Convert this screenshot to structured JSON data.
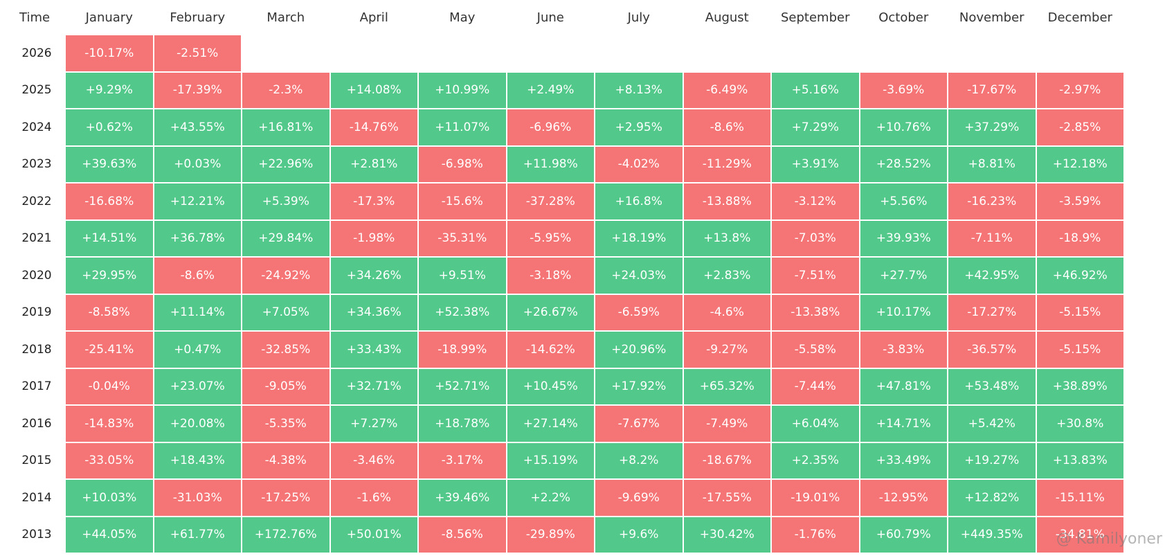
{
  "table": {
    "header": [
      "Time",
      "January",
      "February",
      "March",
      "April",
      "May",
      "June",
      "July",
      "August",
      "September",
      "October",
      "November",
      "December"
    ],
    "rows": [
      {
        "year": "2026",
        "cells": [
          "-10.17%",
          "-2.51%"
        ]
      },
      {
        "year": "2025",
        "cells": [
          "+9.29%",
          "-17.39%",
          "-2.3%",
          "+14.08%",
          "+10.99%",
          "+2.49%",
          "+8.13%",
          "-6.49%",
          "+5.16%",
          "-3.69%",
          "-17.67%",
          "-2.97%"
        ]
      },
      {
        "year": "2024",
        "cells": [
          "+0.62%",
          "+43.55%",
          "+16.81%",
          "-14.76%",
          "+11.07%",
          "-6.96%",
          "+2.95%",
          "-8.6%",
          "+7.29%",
          "+10.76%",
          "+37.29%",
          "-2.85%"
        ]
      },
      {
        "year": "2023",
        "cells": [
          "+39.63%",
          "+0.03%",
          "+22.96%",
          "+2.81%",
          "-6.98%",
          "+11.98%",
          "-4.02%",
          "-11.29%",
          "+3.91%",
          "+28.52%",
          "+8.81%",
          "+12.18%"
        ]
      },
      {
        "year": "2022",
        "cells": [
          "-16.68%",
          "+12.21%",
          "+5.39%",
          "-17.3%",
          "-15.6%",
          "-37.28%",
          "+16.8%",
          "-13.88%",
          "-3.12%",
          "+5.56%",
          "-16.23%",
          "-3.59%"
        ]
      },
      {
        "year": "2021",
        "cells": [
          "+14.51%",
          "+36.78%",
          "+29.84%",
          "-1.98%",
          "-35.31%",
          "-5.95%",
          "+18.19%",
          "+13.8%",
          "-7.03%",
          "+39.93%",
          "-7.11%",
          "-18.9%"
        ]
      },
      {
        "year": "2020",
        "cells": [
          "+29.95%",
          "-8.6%",
          "-24.92%",
          "+34.26%",
          "+9.51%",
          "-3.18%",
          "+24.03%",
          "+2.83%",
          "-7.51%",
          "+27.7%",
          "+42.95%",
          "+46.92%"
        ]
      },
      {
        "year": "2019",
        "cells": [
          "-8.58%",
          "+11.14%",
          "+7.05%",
          "+34.36%",
          "+52.38%",
          "+26.67%",
          "-6.59%",
          "-4.6%",
          "-13.38%",
          "+10.17%",
          "-17.27%",
          "-5.15%"
        ]
      },
      {
        "year": "2018",
        "cells": [
          "-25.41%",
          "+0.47%",
          "-32.85%",
          "+33.43%",
          "-18.99%",
          "-14.62%",
          "+20.96%",
          "-9.27%",
          "-5.58%",
          "-3.83%",
          "-36.57%",
          "-5.15%"
        ]
      },
      {
        "year": "2017",
        "cells": [
          "-0.04%",
          "+23.07%",
          "-9.05%",
          "+32.71%",
          "+52.71%",
          "+10.45%",
          "+17.92%",
          "+65.32%",
          "-7.44%",
          "+47.81%",
          "+53.48%",
          "+38.89%"
        ]
      },
      {
        "year": "2016",
        "cells": [
          "-14.83%",
          "+20.08%",
          "-5.35%",
          "+7.27%",
          "+18.78%",
          "+27.14%",
          "-7.67%",
          "-7.49%",
          "+6.04%",
          "+14.71%",
          "+5.42%",
          "+30.8%"
        ]
      },
      {
        "year": "2015",
        "cells": [
          "-33.05%",
          "+18.43%",
          "-4.38%",
          "-3.46%",
          "-3.17%",
          "+15.19%",
          "+8.2%",
          "-18.67%",
          "+2.35%",
          "+33.49%",
          "+19.27%",
          "+13.83%"
        ]
      },
      {
        "year": "2014",
        "cells": [
          "+10.03%",
          "-31.03%",
          "-17.25%",
          "-1.6%",
          "+39.46%",
          "+2.2%",
          "-9.69%",
          "-17.55%",
          "-19.01%",
          "-12.95%",
          "+12.82%",
          "-15.11%"
        ]
      },
      {
        "year": "2013",
        "cells": [
          "+44.05%",
          "+61.77%",
          "+172.76%",
          "+50.01%",
          "-8.56%",
          "-29.89%",
          "+9.6%",
          "+30.42%",
          "-1.76%",
          "+60.79%",
          "+449.35%",
          "-34.81%"
        ]
      }
    ]
  },
  "watermark": "@ Kamilyoner"
}
